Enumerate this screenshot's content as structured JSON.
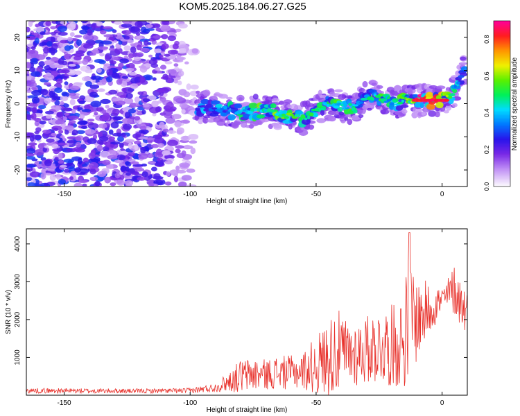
{
  "title": "KOM5.2025.184.06.27.G25",
  "colors": {
    "snr_line": "#e8302a",
    "frame": "#000000",
    "background": "#ffffff"
  },
  "chart_data": [
    {
      "type": "heatmap",
      "xlabel": "Height of straight line (km)",
      "ylabel": "Frequency (Hz)",
      "xlim": [
        -165,
        10
      ],
      "ylim": [
        -25,
        25
      ],
      "xticks": [
        -150,
        -100,
        -50,
        0
      ],
      "yticks": [
        -20,
        -10,
        0,
        10,
        20
      ],
      "colorbar": {
        "label": "Normalized spectral amplitude",
        "range": [
          0,
          0.9
        ],
        "ticks": [
          0,
          0.2,
          0.4,
          0.6,
          0.8
        ],
        "colormap": "rainbow (white-purple-blue-cyan-green-yellow-red-magenta)"
      },
      "ridge": {
        "note": "frequency track of strongest amplitude versus height",
        "x": [
          -97,
          -90,
          -85,
          -80,
          -75,
          -70,
          -65,
          -60,
          -55,
          -50,
          -45,
          -40,
          -35,
          -30,
          -25,
          -20,
          -15,
          -10,
          -5,
          0,
          3,
          5,
          7,
          9
        ],
        "freq": [
          -1,
          -1.5,
          -2,
          -2.5,
          -2.5,
          -2,
          -3,
          -4,
          -4.5,
          -2,
          0,
          -1,
          -1,
          2,
          2,
          0,
          1,
          1,
          1,
          1,
          2,
          4,
          7,
          10
        ],
        "amplitude": [
          0.3,
          0.35,
          0.4,
          0.45,
          0.5,
          0.55,
          0.55,
          0.6,
          0.55,
          0.55,
          0.45,
          0.5,
          0.45,
          0.5,
          0.55,
          0.45,
          0.5,
          0.85,
          0.8,
          0.85,
          0.55,
          0.45,
          0.35,
          0.3
        ]
      },
      "noise_region": {
        "x_range": [
          -165,
          -98
        ],
        "amplitude": [
          0.05,
          0.3
        ]
      }
    },
    {
      "type": "line",
      "xlabel": "Height of straight line (km)",
      "ylabel": "SNR (10 * v/v)",
      "xlim": [
        -165,
        10
      ],
      "ylim": [
        0,
        4400
      ],
      "xticks": [
        -150,
        -100,
        -50,
        0
      ],
      "yticks": [
        1000,
        2000,
        3000,
        4000
      ],
      "series": [
        {
          "envelope_x": [
            -165,
            -120,
            -100,
            -90,
            -85,
            -80,
            -75,
            -70,
            -65,
            -60,
            -55,
            -50,
            -45,
            -42,
            -40,
            -35,
            -30,
            -25,
            -20,
            -15,
            -13,
            -10,
            -5,
            0,
            3,
            5,
            7,
            9,
            10
          ],
          "envelope_mean": [
            120,
            110,
            120,
            200,
            350,
            500,
            550,
            550,
            600,
            600,
            650,
            800,
            1000,
            1200,
            1100,
            1100,
            1200,
            1300,
            1300,
            1500,
            2200,
            2000,
            2300,
            2500,
            2700,
            2800,
            2500,
            2300,
            2300
          ],
          "envelope_amp": [
            70,
            60,
            70,
            120,
            250,
            450,
            450,
            400,
            450,
            450,
            500,
            800,
            1000,
            1200,
            1000,
            900,
            900,
            1000,
            1100,
            1300,
            1900,
            1100,
            700,
            400,
            500,
            700,
            700,
            600,
            500
          ],
          "peak": {
            "x": -13,
            "y": 4300
          }
        }
      ]
    }
  ]
}
